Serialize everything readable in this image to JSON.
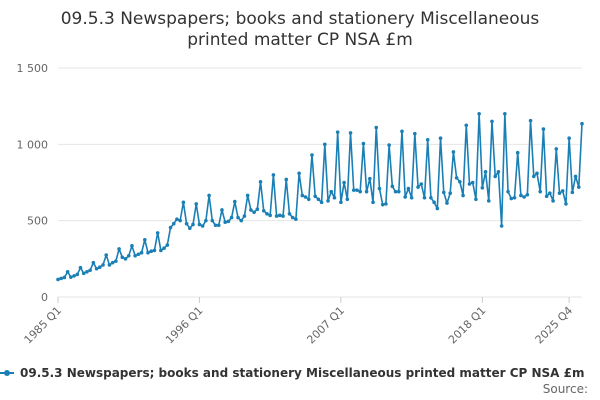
{
  "colors": {
    "series": "#1a7fb5",
    "grid": "#e6e6e6",
    "axis": "#cccccc"
  },
  "chart_data": {
    "type": "line",
    "title_lines": [
      "09.5.3 Newspapers; books and stationery Miscellaneous",
      "printed matter CP NSA £m"
    ],
    "xlabel": "",
    "ylabel": "",
    "ylim": [
      0,
      1500
    ],
    "yticks": [
      0,
      500,
      1000,
      1500
    ],
    "ytick_labels": [
      "0",
      "500",
      "1 000",
      "1 500"
    ],
    "xticks": [
      {
        "index": 0,
        "label": "1985 Q1"
      },
      {
        "index": 44,
        "label": "1996 Q1"
      },
      {
        "index": 88,
        "label": "2007 Q1"
      },
      {
        "index": 132,
        "label": "2018 Q1"
      },
      {
        "index": 159,
        "label": "2025 Q4"
      }
    ],
    "grid": true,
    "legend": {
      "position": "bottom",
      "label": "09.5.3 Newspapers; books and stationery Miscellaneous printed matter CP NSA £m"
    },
    "source_label": "Source:",
    "start": "1985 Q1",
    "end": "2025 Q4",
    "series": [
      {
        "values": [
          115,
          122,
          128,
          165,
          130,
          138,
          148,
          192,
          155,
          165,
          175,
          225,
          185,
          195,
          210,
          275,
          210,
          225,
          235,
          315,
          260,
          250,
          270,
          335,
          270,
          280,
          290,
          375,
          290,
          300,
          305,
          420,
          305,
          320,
          340,
          455,
          480,
          510,
          500,
          620,
          480,
          450,
          475,
          610,
          475,
          465,
          500,
          665,
          500,
          470,
          470,
          570,
          490,
          495,
          520,
          625,
          520,
          500,
          530,
          665,
          570,
          555,
          575,
          755,
          565,
          545,
          535,
          800,
          530,
          535,
          530,
          770,
          545,
          520,
          510,
          810,
          665,
          655,
          640,
          930,
          660,
          640,
          620,
          1000,
          630,
          690,
          650,
          1080,
          620,
          750,
          640,
          1075,
          700,
          700,
          690,
          1005,
          690,
          775,
          620,
          1110,
          710,
          605,
          610,
          995,
          725,
          690,
          690,
          1085,
          655,
          710,
          650,
          1070,
          720,
          740,
          650,
          1030,
          650,
          620,
          580,
          1040,
          685,
          615,
          680,
          950,
          780,
          755,
          665,
          1125,
          740,
          750,
          640,
          1200,
          715,
          820,
          630,
          1150,
          790,
          820,
          465,
          1200,
          690,
          645,
          650,
          945,
          665,
          655,
          670,
          1155,
          790,
          810,
          690,
          1100,
          660,
          680,
          630,
          970,
          680,
          695,
          610,
          1040,
          685,
          790,
          720,
          1135
        ]
      }
    ]
  }
}
